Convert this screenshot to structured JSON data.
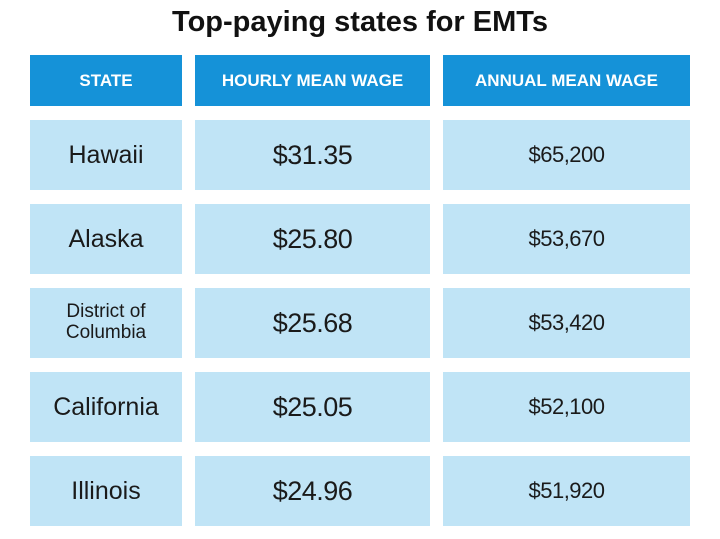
{
  "title": "Top-paying states for EMTs",
  "table": {
    "header": [
      "STATE",
      "HOURLY MEAN WAGE",
      "ANNUAL MEAN WAGE"
    ],
    "rows": [
      [
        "Hawaii",
        "$31.35",
        "$65,200"
      ],
      [
        "Alaska",
        "$25.80",
        "$53,670"
      ],
      [
        "District of Columbia",
        "$25.68",
        "$53,420"
      ],
      [
        "California",
        "$25.05",
        "$52,100"
      ],
      [
        "Illinois",
        "$24.96",
        "$51,920"
      ]
    ]
  }
}
